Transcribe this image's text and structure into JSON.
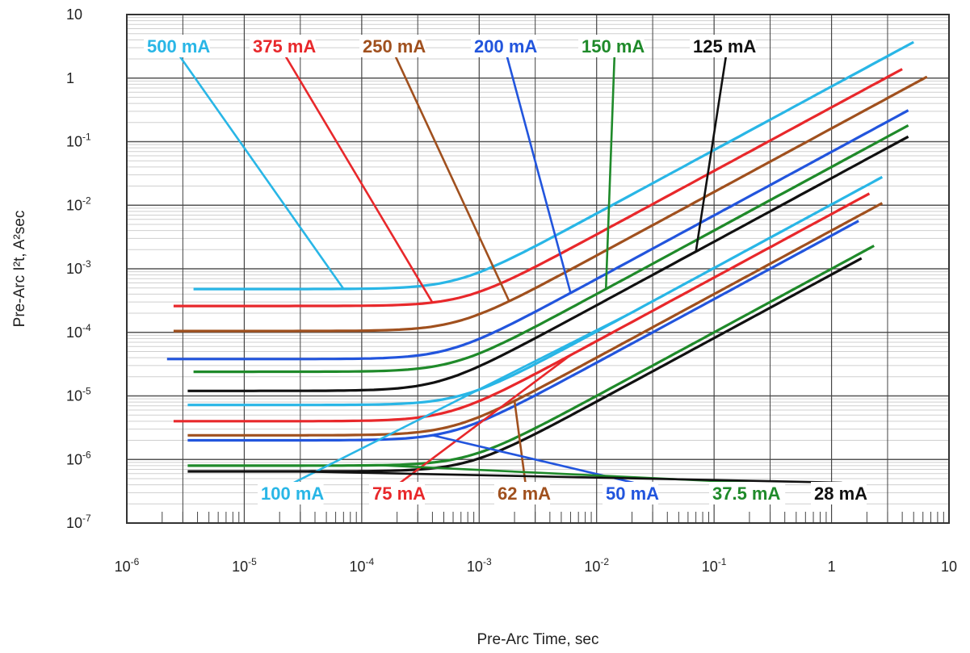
{
  "chart_data": {
    "type": "line",
    "title": "",
    "xlabel": "Pre-Arc Time, sec",
    "ylabel": "Pre-Arc I²t, A²sec",
    "xscale": "log",
    "yscale": "log",
    "xlim": [
      1e-06,
      10
    ],
    "ylim": [
      1e-07,
      10
    ],
    "grid": true,
    "x_ticks": [
      {
        "base": "10",
        "exp": "-6"
      },
      {
        "base": "10",
        "exp": "-5"
      },
      {
        "base": "10",
        "exp": "-4"
      },
      {
        "base": "10",
        "exp": "-3"
      },
      {
        "base": "10",
        "exp": "-2"
      },
      {
        "base": "10",
        "exp": "-1"
      },
      {
        "base": "1",
        "exp": ""
      },
      {
        "base": "10",
        "exp": ""
      }
    ],
    "y_ticks": [
      {
        "base": "10",
        "exp": "-7"
      },
      {
        "base": "10",
        "exp": "-6"
      },
      {
        "base": "10",
        "exp": "-5"
      },
      {
        "base": "10",
        "exp": "-4"
      },
      {
        "base": "10",
        "exp": "-3"
      },
      {
        "base": "10",
        "exp": "-2"
      },
      {
        "base": "10",
        "exp": "-1"
      },
      {
        "base": "1",
        "exp": ""
      },
      {
        "base": "10",
        "exp": ""
      }
    ],
    "series": [
      {
        "name": "500 mA",
        "color": "#29b6e6",
        "ymin": 0.00048,
        "knee": 0.00065,
        "x": [
          3.7e-06,
          5
        ],
        "label_pos": "top",
        "label_offset": 7e-05
      },
      {
        "name": "375 mA",
        "color": "#e8282b",
        "ymin": 0.00026,
        "knee": 0.00075,
        "x": [
          2.5e-06,
          4
        ],
        "label_pos": "top",
        "label_offset": 0.0004
      },
      {
        "name": "250 mA",
        "color": "#a0501e",
        "ymin": 0.000105,
        "knee": 0.00065,
        "x": [
          2.5e-06,
          6.5
        ],
        "label_pos": "top",
        "label_offset": 0.0018
      },
      {
        "name": "200 mA",
        "color": "#2255dd",
        "ymin": 3.8e-05,
        "knee": 0.00055,
        "x": [
          2.2e-06,
          4.5
        ],
        "label_pos": "top",
        "label_offset": 0.006
      },
      {
        "name": "150 mA",
        "color": "#1f8a2a",
        "ymin": 2.4e-05,
        "knee": 0.0006,
        "x": [
          3.7e-06,
          4.5
        ],
        "label_pos": "top",
        "label_offset": 0.012
      },
      {
        "name": "125 mA",
        "color": "#111111",
        "ymin": 1.2e-05,
        "knee": 0.00045,
        "x": [
          3.3e-06,
          4.5
        ],
        "label_pos": "top",
        "label_offset": 0.07
      },
      {
        "name": "100 mA",
        "color": "#29b6e6",
        "ymin": 7.2e-06,
        "knee": 0.0007,
        "x": [
          3.3e-06,
          2.7
        ],
        "label_pos": "bottom",
        "label_offset": 0.02
      },
      {
        "name": "75 mA",
        "color": "#e8282b",
        "ymin": 4e-06,
        "knee": 0.00055,
        "x": [
          2.5e-06,
          2.1
        ],
        "label_pos": "bottom",
        "label_offset": 0.006
      },
      {
        "name": "62 mA",
        "color": "#a0501e",
        "ymin": 2.4e-06,
        "knee": 0.0006,
        "x": [
          3.3e-06,
          2.7
        ],
        "label_pos": "bottom",
        "label_offset": 0.002
      },
      {
        "name": "50 mA",
        "color": "#2255dd",
        "ymin": 2e-06,
        "knee": 0.0006,
        "x": [
          3.3e-06,
          1.7
        ],
        "label_pos": "bottom",
        "label_offset": 0.0004
      },
      {
        "name": "37.5 mA",
        "color": "#1f8a2a",
        "ymin": 8e-07,
        "knee": 0.0008,
        "x": [
          3.3e-06,
          2.3
        ],
        "label_pos": "bottom",
        "label_offset": 0.00014
      },
      {
        "name": "28 mA",
        "color": "#111111",
        "ymin": 6.5e-07,
        "knee": 0.0008,
        "x": [
          3.3e-06,
          1.8
        ],
        "label_pos": "bottom",
        "label_offset": 2.7e-05
      }
    ]
  }
}
